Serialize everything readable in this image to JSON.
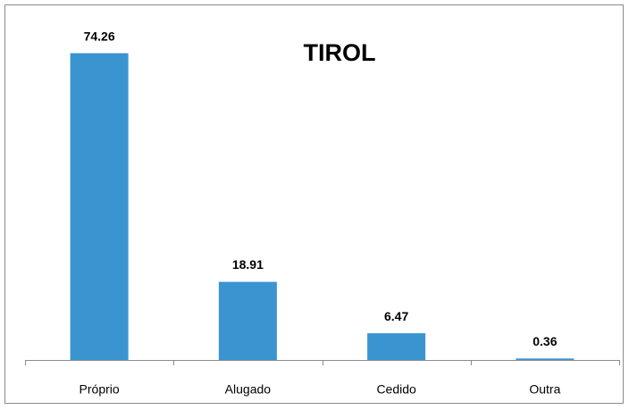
{
  "chart_data": {
    "type": "bar",
    "title": "TIROL",
    "categories": [
      "Próprio",
      "Alugado",
      "Cedido",
      "Outra"
    ],
    "values": [
      74.26,
      18.91,
      6.47,
      0.36
    ],
    "color": "#3a94d0",
    "ylim": [
      0,
      80
    ]
  }
}
